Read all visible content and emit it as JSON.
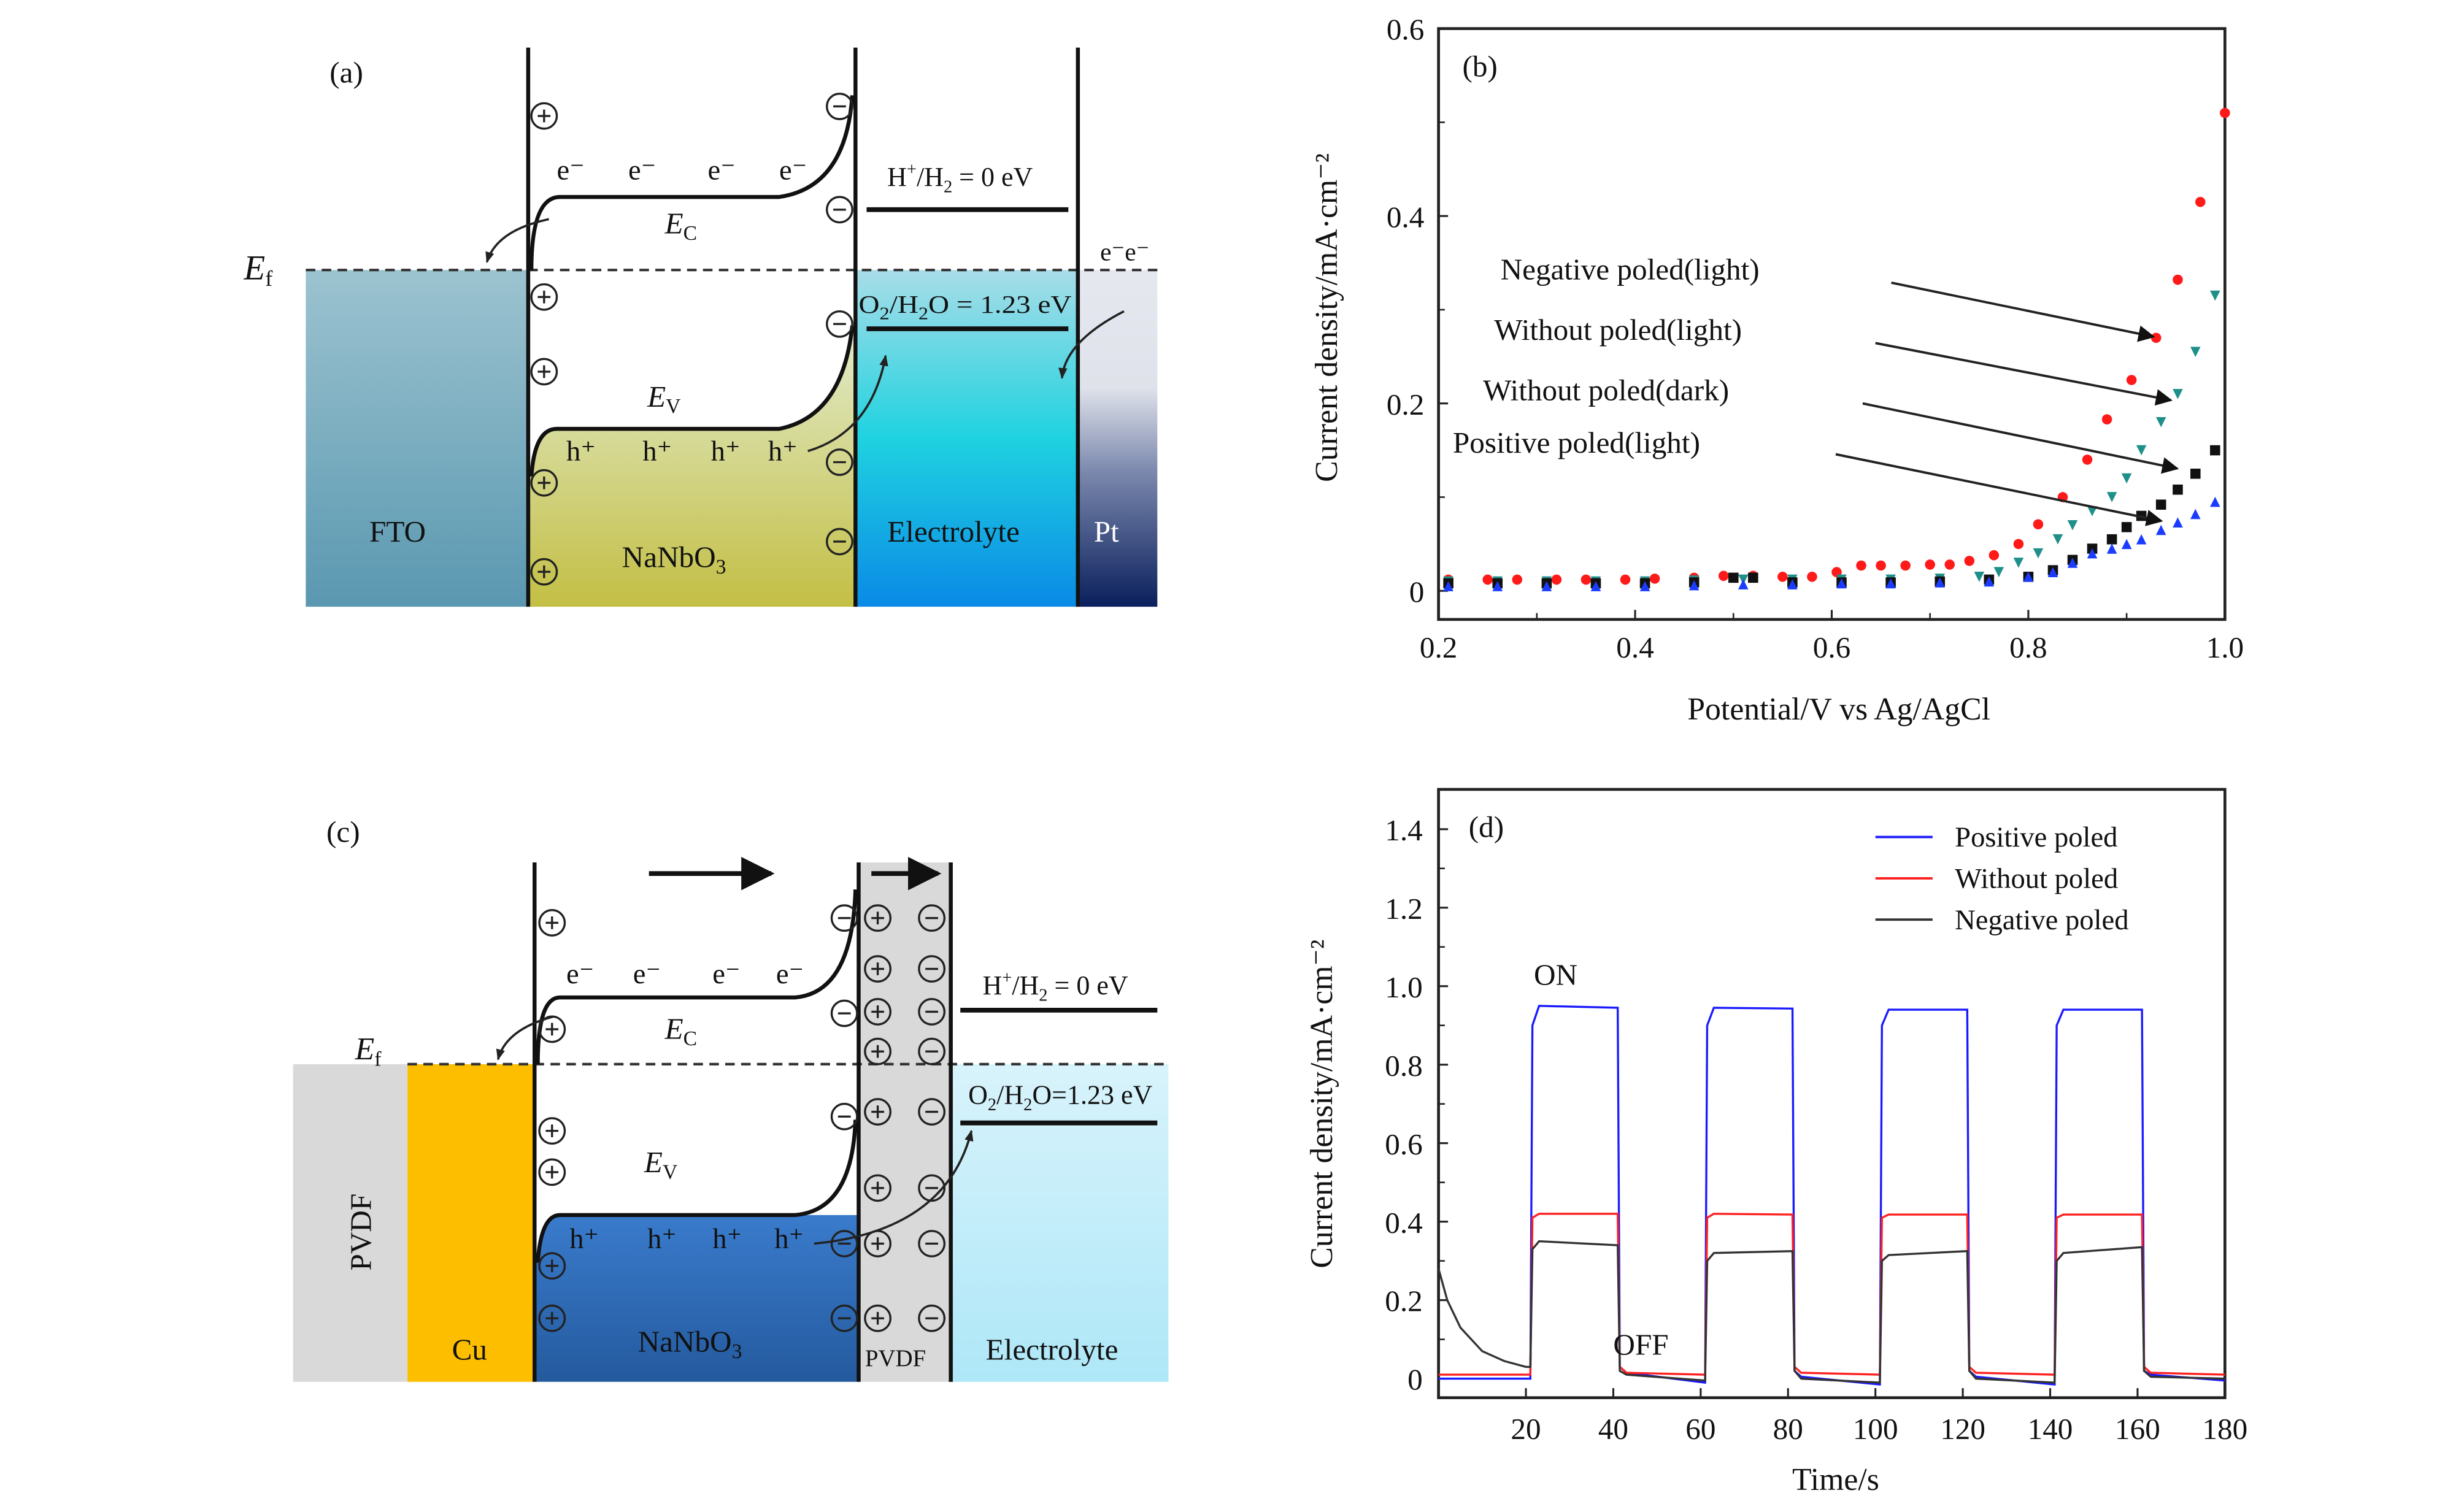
{
  "panel_a": {
    "tag": "(a)",
    "ef": {
      "main": "E",
      "sub": "f"
    },
    "ec": {
      "main": "E",
      "sub": "C"
    },
    "ev": {
      "main": "E",
      "sub": "V"
    },
    "electron": "e⁻",
    "hole": "h⁺",
    "pt_electrons": "e⁻e⁻",
    "h2_level": {
      "a": "H",
      "sup": "+",
      "b": "/H",
      "sub": "2",
      "c": " = 0 eV"
    },
    "o2_level": {
      "a": "O",
      "sub1": "2",
      "b": "/H",
      "sub2": "2",
      "c": "O = 1.23 eV"
    },
    "layers": {
      "fto": "FTO",
      "nanbo3": {
        "main": "NaNbO",
        "sub": "3"
      },
      "electrolyte": "Electrolyte",
      "pt": "Pt"
    },
    "colors": {
      "fto": "#7fb0c2",
      "nanbo3": "#c6c24e",
      "electrolyte": "#14c6e0",
      "pt": "#0d2a66"
    }
  },
  "panel_c": {
    "tag": "(c)",
    "ef": {
      "main": "E",
      "sub": "f"
    },
    "ec": {
      "main": "E",
      "sub": "C"
    },
    "ev": {
      "main": "E",
      "sub": "V"
    },
    "electron": "e⁻",
    "hole": "h⁺",
    "h2_level": {
      "a": "H",
      "sup": "+",
      "b": "/H",
      "sub": "2",
      "c": " = 0 eV"
    },
    "o2_level": {
      "a": "O",
      "sub1": "2",
      "b": "/H",
      "sub2": "2",
      "c": "O=1.23 eV"
    },
    "layers": {
      "pvdf_left": "PVDF",
      "cu": "Cu",
      "nanbo3": {
        "main": "NaNbO",
        "sub": "3"
      },
      "pvdf_mid": "PVDF",
      "electrolyte": "Electrolyte"
    },
    "colors": {
      "pvdf": "#d9d9d9",
      "cu": "#fdbe00",
      "nanbo3": "#2f6bb8",
      "electrolyte": "#c4eefa"
    }
  },
  "chart_data": [
    {
      "panel": "(b)",
      "type": "scatter",
      "title": "",
      "xlabel": "Potential/V vs Ag/AgCl",
      "ylabel": "Current density/mA·cm⁻²",
      "xlim": [
        0.2,
        1.0
      ],
      "ylim": [
        0,
        0.6
      ],
      "xticks": [
        "0.2",
        "0.4",
        "0.6",
        "0.8",
        "1.0"
      ],
      "yticks": [
        "0",
        "0.2",
        "0.4",
        "0.6"
      ],
      "series": [
        {
          "name": "Negative poled(light)",
          "marker": "circle",
          "color": "#ff1a1a",
          "points": [
            [
              0.21,
              0.012
            ],
            [
              0.25,
              0.012
            ],
            [
              0.28,
              0.012
            ],
            [
              0.32,
              0.012
            ],
            [
              0.35,
              0.012
            ],
            [
              0.39,
              0.012
            ],
            [
              0.42,
              0.013
            ],
            [
              0.46,
              0.014
            ],
            [
              0.49,
              0.016
            ],
            [
              0.52,
              0.016
            ],
            [
              0.55,
              0.015
            ],
            [
              0.58,
              0.015
            ],
            [
              0.605,
              0.02
            ],
            [
              0.63,
              0.027
            ],
            [
              0.65,
              0.027
            ],
            [
              0.675,
              0.027
            ],
            [
              0.7,
              0.028
            ],
            [
              0.72,
              0.028
            ],
            [
              0.74,
              0.032
            ],
            [
              0.765,
              0.038
            ],
            [
              0.79,
              0.05
            ],
            [
              0.81,
              0.071
            ],
            [
              0.835,
              0.1
            ],
            [
              0.86,
              0.14
            ],
            [
              0.88,
              0.183
            ],
            [
              0.905,
              0.225
            ],
            [
              0.93,
              0.27
            ],
            [
              0.952,
              0.332
            ],
            [
              0.975,
              0.415
            ],
            [
              1.0,
              0.51
            ]
          ]
        },
        {
          "name": "Without poled(light)",
          "marker": "triangle-down",
          "color": "#1f8f8a",
          "points": [
            [
              0.21,
              0.01
            ],
            [
              0.26,
              0.01
            ],
            [
              0.31,
              0.01
            ],
            [
              0.36,
              0.01
            ],
            [
              0.41,
              0.01
            ],
            [
              0.46,
              0.011
            ],
            [
              0.51,
              0.012
            ],
            [
              0.56,
              0.012
            ],
            [
              0.61,
              0.012
            ],
            [
              0.66,
              0.012
            ],
            [
              0.71,
              0.013
            ],
            [
              0.75,
              0.015
            ],
            [
              0.77,
              0.02
            ],
            [
              0.79,
              0.03
            ],
            [
              0.81,
              0.04
            ],
            [
              0.83,
              0.055
            ],
            [
              0.845,
              0.07
            ],
            [
              0.865,
              0.085
            ],
            [
              0.885,
              0.1
            ],
            [
              0.9,
              0.12
            ],
            [
              0.915,
              0.15
            ],
            [
              0.935,
              0.18
            ],
            [
              0.952,
              0.21
            ],
            [
              0.97,
              0.255
            ],
            [
              0.99,
              0.315
            ]
          ]
        },
        {
          "name": "Without poled(dark)",
          "marker": "square",
          "color": "#111111",
          "points": [
            [
              0.21,
              0.008
            ],
            [
              0.26,
              0.008
            ],
            [
              0.31,
              0.008
            ],
            [
              0.36,
              0.008
            ],
            [
              0.41,
              0.008
            ],
            [
              0.46,
              0.009
            ],
            [
              0.5,
              0.014
            ],
            [
              0.52,
              0.014
            ],
            [
              0.56,
              0.009
            ],
            [
              0.61,
              0.009
            ],
            [
              0.66,
              0.009
            ],
            [
              0.71,
              0.01
            ],
            [
              0.76,
              0.012
            ],
            [
              0.8,
              0.015
            ],
            [
              0.825,
              0.022
            ],
            [
              0.845,
              0.033
            ],
            [
              0.865,
              0.045
            ],
            [
              0.885,
              0.055
            ],
            [
              0.9,
              0.068
            ],
            [
              0.915,
              0.08
            ],
            [
              0.935,
              0.092
            ],
            [
              0.952,
              0.108
            ],
            [
              0.97,
              0.125
            ],
            [
              0.99,
              0.15
            ]
          ]
        },
        {
          "name": "Positive poled(light)",
          "marker": "triangle-up",
          "color": "#1a3cff",
          "points": [
            [
              0.21,
              0.005
            ],
            [
              0.26,
              0.005
            ],
            [
              0.31,
              0.005
            ],
            [
              0.36,
              0.005
            ],
            [
              0.41,
              0.005
            ],
            [
              0.46,
              0.006
            ],
            [
              0.51,
              0.007
            ],
            [
              0.56,
              0.007
            ],
            [
              0.61,
              0.008
            ],
            [
              0.66,
              0.008
            ],
            [
              0.71,
              0.009
            ],
            [
              0.76,
              0.01
            ],
            [
              0.8,
              0.015
            ],
            [
              0.825,
              0.02
            ],
            [
              0.845,
              0.03
            ],
            [
              0.865,
              0.04
            ],
            [
              0.885,
              0.045
            ],
            [
              0.9,
              0.05
            ],
            [
              0.915,
              0.055
            ],
            [
              0.935,
              0.065
            ],
            [
              0.952,
              0.073
            ],
            [
              0.97,
              0.082
            ],
            [
              0.99,
              0.095
            ]
          ]
        }
      ],
      "annotations": [
        "Negative poled(light)",
        "Without poled(light)",
        "Without poled(dark)",
        "Positive poled(light)"
      ]
    },
    {
      "panel": "(d)",
      "type": "line",
      "title": "",
      "xlabel": "Time/s",
      "ylabel": "Current density/mA·cm⁻²",
      "xlim": [
        0,
        180
      ],
      "ylim": [
        -0.03,
        1.5
      ],
      "xticks": [
        "20",
        "40",
        "60",
        "80",
        "100",
        "120",
        "140",
        "160",
        "180"
      ],
      "yticks": [
        "0",
        "0.2",
        "0.4",
        "0.6",
        "0.8",
        "1.0",
        "1.2",
        "1.4"
      ],
      "legend_position": "top-right",
      "annotations": {
        "on": "ON",
        "off": "OFF"
      },
      "series": [
        {
          "name": "Positive poled",
          "color": "#1a1aff",
          "points": [
            [
              0,
              0
            ],
            [
              21,
              0
            ],
            [
              21.5,
              0.9
            ],
            [
              23,
              0.95
            ],
            [
              41,
              0.945
            ],
            [
              41.5,
              0.03
            ],
            [
              43,
              0.015
            ],
            [
              61,
              -0.01
            ],
            [
              61.5,
              0.9
            ],
            [
              63,
              0.945
            ],
            [
              81,
              0.943
            ],
            [
              81.5,
              0.02
            ],
            [
              83,
              0.005
            ],
            [
              101,
              -0.015
            ],
            [
              101.5,
              0.9
            ],
            [
              103,
              0.94
            ],
            [
              121,
              0.94
            ],
            [
              121.5,
              0.02
            ],
            [
              123,
              0.005
            ],
            [
              141,
              -0.015
            ],
            [
              141.5,
              0.9
            ],
            [
              143,
              0.94
            ],
            [
              161,
              0.94
            ],
            [
              161.5,
              0.02
            ],
            [
              163,
              0.01
            ],
            [
              180,
              -0.005
            ]
          ]
        },
        {
          "name": "Without poled",
          "color": "#ff2020",
          "points": [
            [
              0,
              0.01
            ],
            [
              21,
              0.01
            ],
            [
              21.5,
              0.41
            ],
            [
              23,
              0.42
            ],
            [
              41,
              0.42
            ],
            [
              41.5,
              0.03
            ],
            [
              43,
              0.015
            ],
            [
              61,
              0.01
            ],
            [
              61.5,
              0.41
            ],
            [
              63,
              0.42
            ],
            [
              81,
              0.418
            ],
            [
              81.5,
              0.03
            ],
            [
              83,
              0.015
            ],
            [
              101,
              0.01
            ],
            [
              101.5,
              0.41
            ],
            [
              103,
              0.418
            ],
            [
              121,
              0.418
            ],
            [
              121.5,
              0.03
            ],
            [
              123,
              0.015
            ],
            [
              141,
              0.01
            ],
            [
              141.5,
              0.41
            ],
            [
              143,
              0.418
            ],
            [
              161,
              0.418
            ],
            [
              161.5,
              0.03
            ],
            [
              163,
              0.015
            ],
            [
              180,
              0.01
            ]
          ]
        },
        {
          "name": "Negative poled",
          "color": "#333333",
          "points": [
            [
              0,
              0.28
            ],
            [
              2,
              0.2
            ],
            [
              5,
              0.13
            ],
            [
              10,
              0.07
            ],
            [
              15,
              0.045
            ],
            [
              20,
              0.03
            ],
            [
              21,
              0.03
            ],
            [
              21.5,
              0.33
            ],
            [
              23,
              0.35
            ],
            [
              41,
              0.34
            ],
            [
              41.5,
              0.02
            ],
            [
              43,
              0.01
            ],
            [
              61,
              -0.005
            ],
            [
              61.5,
              0.3
            ],
            [
              63,
              0.32
            ],
            [
              81,
              0.325
            ],
            [
              81.5,
              0.02
            ],
            [
              83,
              0
            ],
            [
              101,
              -0.01
            ],
            [
              101.5,
              0.3
            ],
            [
              103,
              0.315
            ],
            [
              121,
              0.325
            ],
            [
              121.5,
              0.02
            ],
            [
              123,
              0
            ],
            [
              141,
              -0.01
            ],
            [
              141.5,
              0.3
            ],
            [
              143,
              0.32
            ],
            [
              161,
              0.335
            ],
            [
              161.5,
              0.02
            ],
            [
              163,
              0.005
            ],
            [
              180,
              0
            ]
          ]
        }
      ]
    }
  ]
}
